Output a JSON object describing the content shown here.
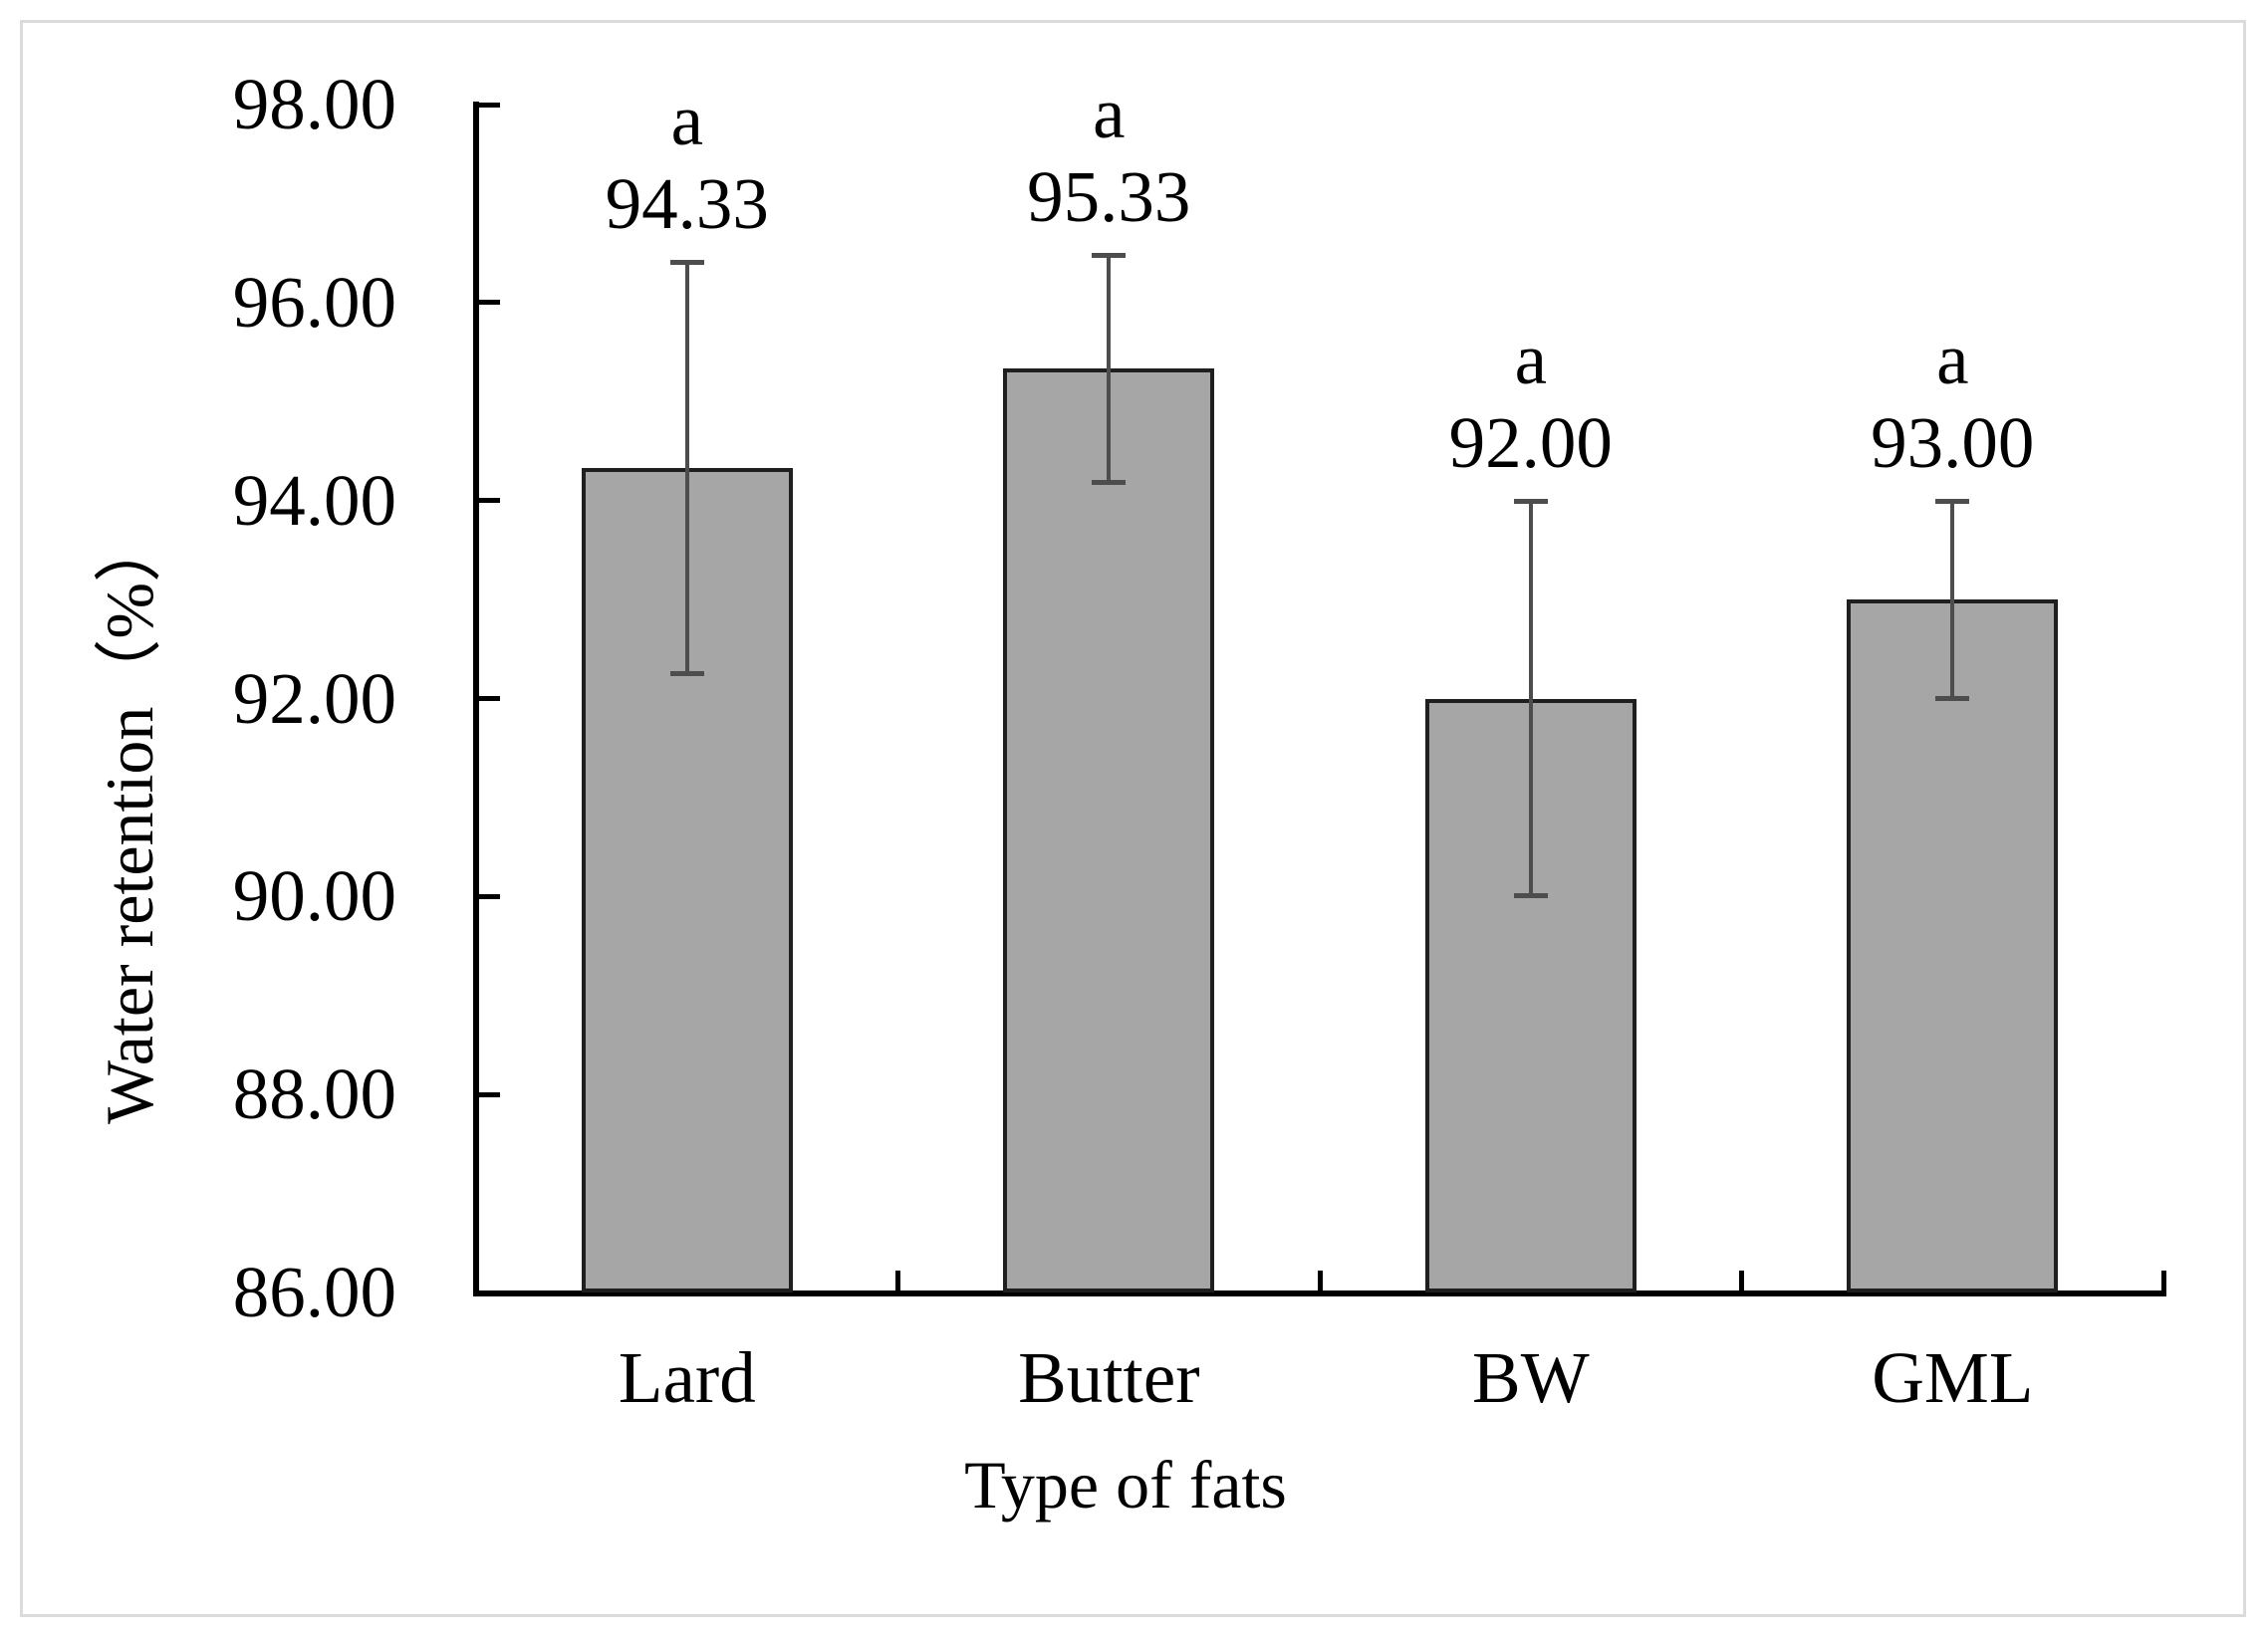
{
  "chart_data": {
    "type": "bar",
    "title": "",
    "categories": [
      "Lard",
      "Butter",
      "BW",
      "GML"
    ],
    "values": [
      94.33,
      95.33,
      92.0,
      93.0
    ],
    "value_labels": [
      "94.33",
      "95.33",
      "92.00",
      "93.00"
    ],
    "significance_letters": [
      "a",
      "a",
      "a",
      "a"
    ],
    "errors_plus": [
      2.08,
      1.15,
      2.0,
      1.0
    ],
    "errors_minus": [
      2.08,
      1.15,
      2.0,
      1.0
    ],
    "xlabel": "Type of fats",
    "ylabel": "Water retention（%）",
    "ylim": [
      86,
      98
    ],
    "ytick_values": [
      86,
      88,
      90,
      92,
      94,
      96,
      98
    ],
    "ytick_labels": [
      "86.00",
      "88.00",
      "90.00",
      "92.00",
      "94.00",
      "96.00",
      "98.00"
    ],
    "grid": false,
    "legend_position": "none",
    "bar_fill_color": "#a6a6a6",
    "bar_border_color": "#1f1f1f",
    "error_bar_color": "#4d4d4d",
    "axis_color": "#000000",
    "frame_color": "#dbdbdb",
    "tick_direction": "inside"
  }
}
